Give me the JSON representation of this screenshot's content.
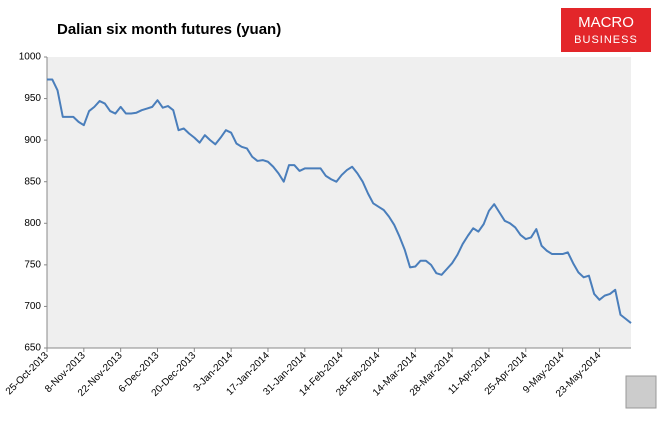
{
  "chart_data": {
    "type": "line",
    "title": "Dalian six month futures (yuan)",
    "logo": [
      "MACRO",
      "BUSINESS"
    ],
    "categories": [
      "25-Oct-2013",
      null,
      null,
      null,
      null,
      null,
      null,
      "8-Nov-2013",
      null,
      null,
      null,
      null,
      null,
      null,
      "22-Nov-2013",
      null,
      null,
      null,
      null,
      null,
      null,
      "6-Dec-2013",
      null,
      null,
      null,
      null,
      null,
      null,
      "20-Dec-2013",
      null,
      null,
      null,
      null,
      null,
      null,
      "3-Jan-2014",
      null,
      null,
      null,
      null,
      null,
      null,
      "17-Jan-2014",
      null,
      null,
      null,
      null,
      null,
      null,
      "31-Jan-2014",
      null,
      null,
      null,
      null,
      null,
      null,
      "14-Feb-2014",
      null,
      null,
      null,
      null,
      null,
      null,
      "28-Feb-2014",
      null,
      null,
      null,
      null,
      null,
      null,
      "14-Mar-2014",
      null,
      null,
      null,
      null,
      null,
      null,
      "28-Mar-2014",
      null,
      null,
      null,
      null,
      null,
      null,
      "11-Apr-2014",
      null,
      null,
      null,
      null,
      null,
      null,
      "25-Apr-2014",
      null,
      null,
      null,
      null,
      null,
      null,
      "9-May-2014",
      null,
      null,
      null,
      null,
      null,
      null,
      "23-May-2014",
      null,
      null,
      null,
      null,
      null,
      null
    ],
    "series": [
      {
        "color": "#4a7ebb",
        "values": [
          973,
          973,
          960,
          928,
          928,
          928,
          922,
          918,
          935,
          940,
          947,
          944,
          935,
          932,
          940,
          932,
          932,
          933,
          936,
          938,
          940,
          948,
          939,
          941,
          936,
          912,
          914,
          908,
          903,
          897,
          906,
          900,
          895,
          903,
          912,
          909,
          896,
          892,
          890,
          880,
          875,
          876,
          874,
          868,
          860,
          850,
          870,
          870,
          863,
          866,
          866,
          866,
          866,
          857,
          853,
          850,
          858,
          864,
          868,
          860,
          850,
          836,
          824,
          820,
          816,
          808,
          798,
          784,
          768,
          747,
          748,
          755,
          755,
          750,
          740,
          738,
          745,
          752,
          762,
          775,
          785,
          794,
          790,
          799,
          815,
          823,
          813,
          803,
          800,
          795,
          786,
          781,
          783,
          793,
          773,
          767,
          763,
          763,
          763,
          765,
          752,
          741,
          735,
          737,
          715,
          708,
          713,
          715,
          720,
          690,
          685,
          680
        ]
      }
    ],
    "ylim": [
      650,
      1000
    ],
    "yticks": [
      650,
      700,
      750,
      800,
      850,
      900,
      950,
      1000
    ],
    "grid": false
  }
}
